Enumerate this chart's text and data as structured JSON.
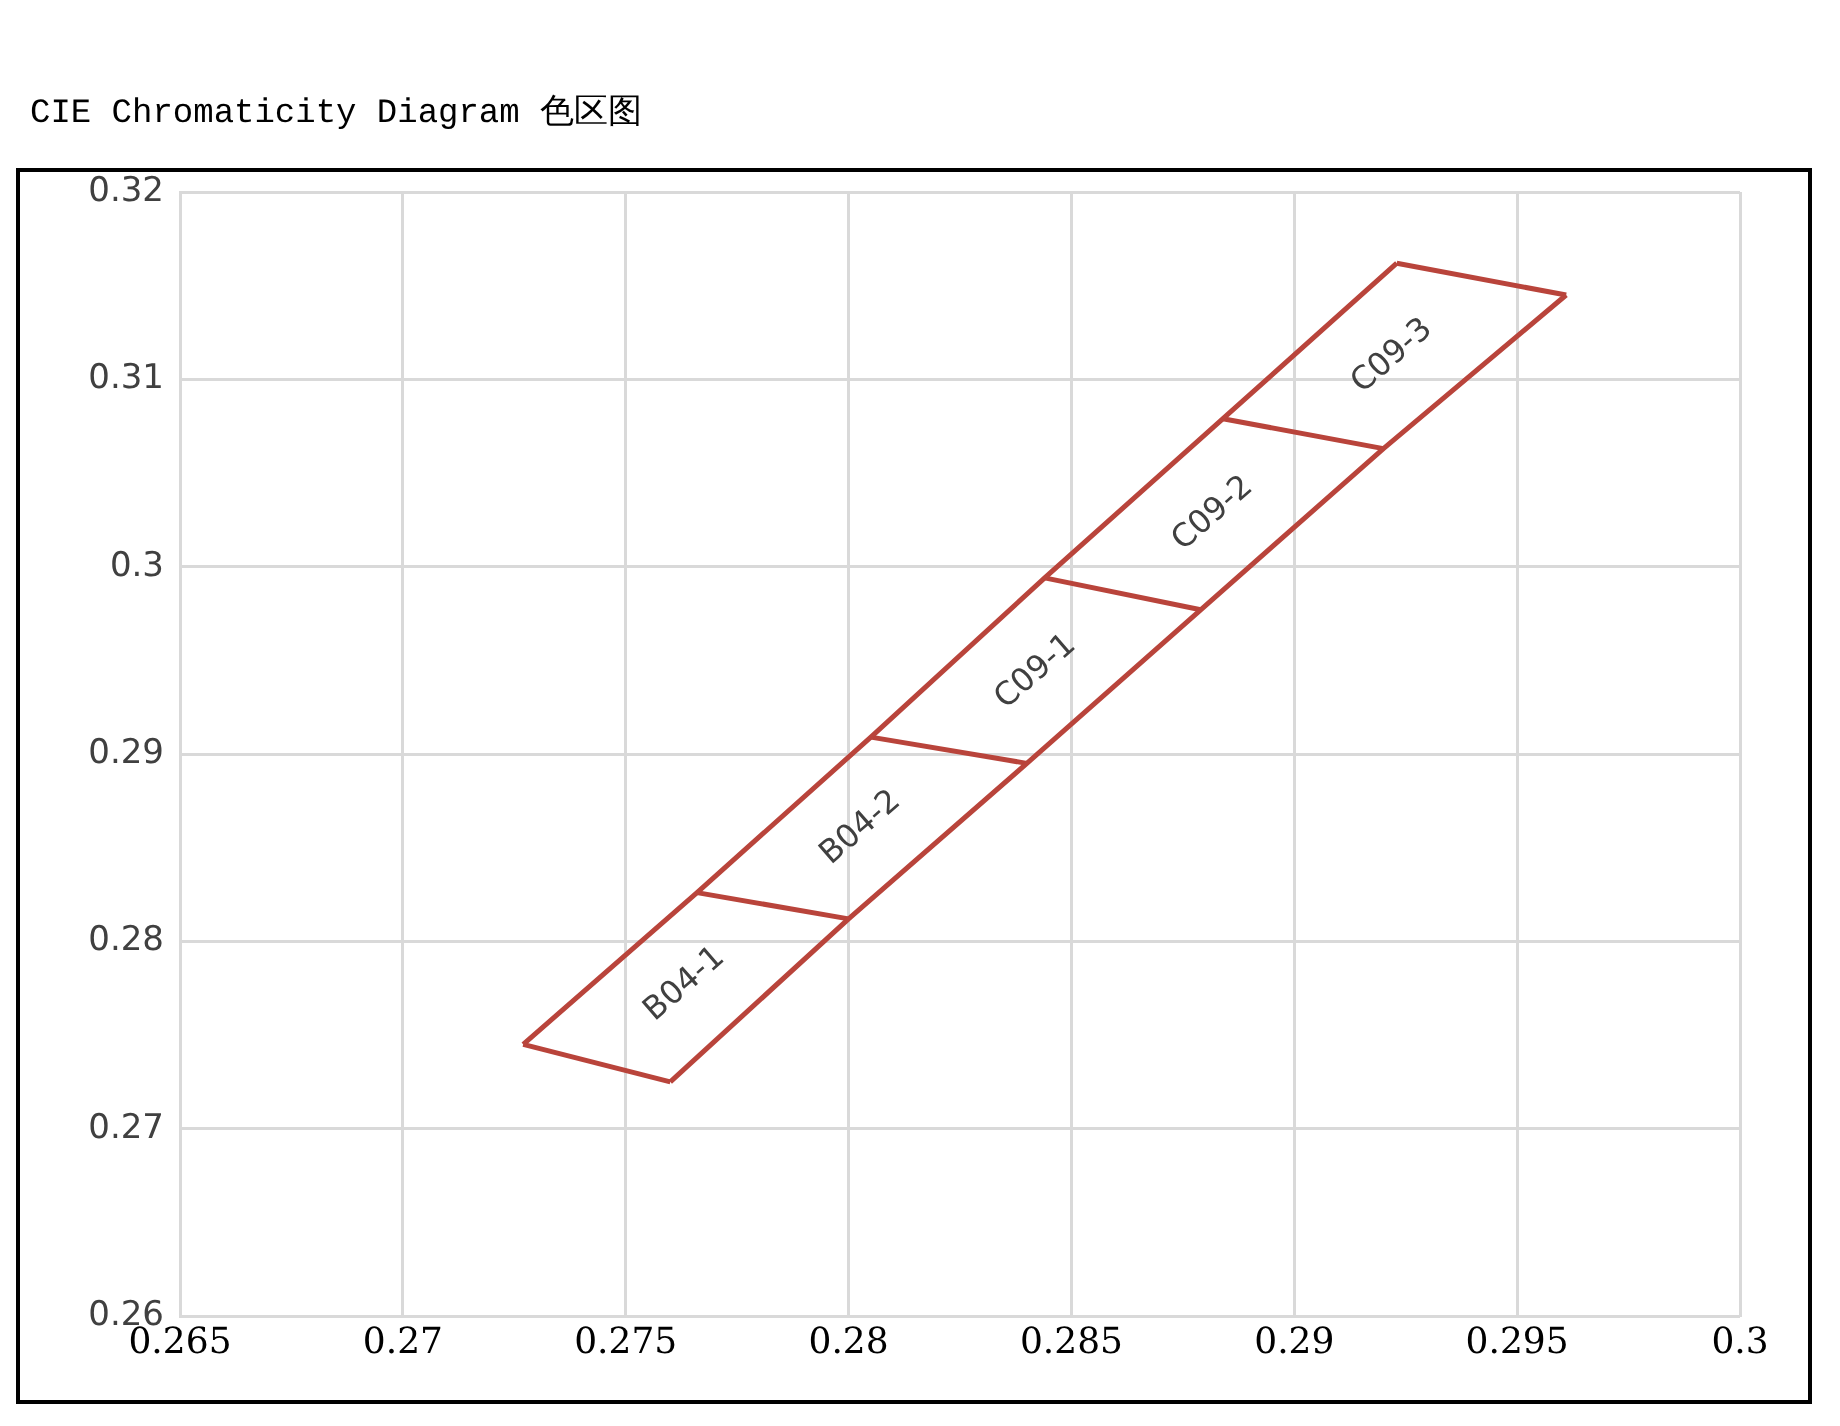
{
  "chart_data": {
    "type": "line",
    "title": "CIE Chromaticity Diagram 色区图",
    "series": [
      {
        "color": "#b9443b",
        "x": [
          0.2727,
          0.2766,
          0.2805,
          0.2844,
          0.2884,
          0.2923
        ],
        "values": [
          0.2745,
          0.2826,
          0.2909,
          0.2994,
          0.3079,
          0.3162
        ]
      },
      {
        "color": "#b9443b",
        "x": [
          0.276,
          0.28,
          0.284,
          0.2879,
          0.292,
          0.2961
        ],
        "values": [
          0.2725,
          0.2812,
          0.2895,
          0.2977,
          0.3063,
          0.3145
        ]
      },
      {
        "color": "#b9443b",
        "x": [
          0.2727,
          0.276
        ],
        "values": [
          0.2745,
          0.2725
        ]
      },
      {
        "color": "#b9443b",
        "x": [
          0.2766,
          0.28
        ],
        "values": [
          0.2826,
          0.2812
        ]
      },
      {
        "color": "#b9443b",
        "x": [
          0.2805,
          0.284
        ],
        "values": [
          0.2909,
          0.2895
        ]
      },
      {
        "color": "#b9443b",
        "x": [
          0.2844,
          0.2879
        ],
        "values": [
          0.2994,
          0.2977
        ]
      },
      {
        "color": "#b9443b",
        "x": [
          0.2884,
          0.292
        ],
        "values": [
          0.3079,
          0.3063
        ]
      },
      {
        "color": "#b9443b",
        "x": [
          0.2923,
          0.2961
        ],
        "values": [
          0.3162,
          0.3145
        ]
      }
    ],
    "annotations": [
      "B04-1",
      "B04-2",
      "C09-1",
      "C09-2",
      "C09-3"
    ],
    "xlim": [
      0.265,
      0.3
    ],
    "xticks": [
      0.265,
      0.27,
      0.275,
      0.28,
      0.285,
      0.29,
      0.295,
      0.3
    ],
    "ylim": [
      0.26,
      0.32
    ],
    "yticks": [
      0.26,
      0.27,
      0.28,
      0.29,
      0.3,
      0.31,
      0.32
    ],
    "grid": true,
    "legend": false,
    "marker": "none",
    "line_style": "solid"
  }
}
